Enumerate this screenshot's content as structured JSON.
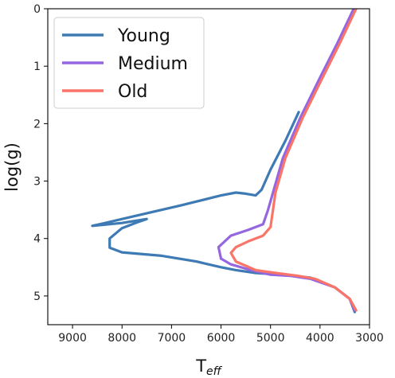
{
  "chart_data": {
    "type": "line",
    "title": "",
    "xlabel": "T",
    "xlabel_sub": "eff",
    "ylabel": "log(g)",
    "xlim": [
      9500,
      3000
    ],
    "ylim": [
      5.5,
      0
    ],
    "x_inverted": true,
    "y_inverted": true,
    "xticks": [
      9000,
      8000,
      7000,
      6000,
      5000,
      4000,
      3000
    ],
    "yticks": [
      0,
      1,
      2,
      3,
      4,
      5
    ],
    "xtick_labels": [
      "9000",
      "8000",
      "7000",
      "6000",
      "5000",
      "4000",
      "3000"
    ],
    "ytick_labels": [
      "0",
      "1",
      "2",
      "3",
      "4",
      "5"
    ],
    "grid": false,
    "legend_position": "top-left",
    "series": [
      {
        "name": "Young",
        "color": "#3e7ab3",
        "points": [
          [
            4430,
            1.8
          ],
          [
            4700,
            2.3
          ],
          [
            5000,
            2.8
          ],
          [
            5180,
            3.15
          ],
          [
            5300,
            3.25
          ],
          [
            5500,
            3.22
          ],
          [
            5700,
            3.2
          ],
          [
            6000,
            3.25
          ],
          [
            6800,
            3.42
          ],
          [
            7600,
            3.58
          ],
          [
            8400,
            3.74
          ],
          [
            8600,
            3.78
          ],
          [
            8000,
            3.73
          ],
          [
            7500,
            3.66
          ],
          [
            7700,
            3.72
          ],
          [
            8000,
            3.82
          ],
          [
            8250,
            4.0
          ],
          [
            8250,
            4.16
          ],
          [
            8000,
            4.24
          ],
          [
            7200,
            4.3
          ],
          [
            6500,
            4.4
          ],
          [
            6000,
            4.5
          ],
          [
            5700,
            4.55
          ],
          [
            5300,
            4.6
          ],
          [
            4800,
            4.63
          ],
          [
            4200,
            4.68
          ],
          [
            3700,
            4.85
          ],
          [
            3400,
            5.05
          ],
          [
            3300,
            5.28
          ]
        ]
      },
      {
        "name": "Medium",
        "color": "#9467e0",
        "points": [
          [
            3320,
            0.0
          ],
          [
            3650,
            0.6
          ],
          [
            4000,
            1.2
          ],
          [
            4400,
            1.9
          ],
          [
            4750,
            2.6
          ],
          [
            4950,
            3.2
          ],
          [
            5050,
            3.5
          ],
          [
            5150,
            3.75
          ],
          [
            5450,
            3.85
          ],
          [
            5800,
            3.95
          ],
          [
            6050,
            4.15
          ],
          [
            6000,
            4.35
          ],
          [
            5800,
            4.45
          ],
          [
            5400,
            4.55
          ],
          [
            5000,
            4.63
          ],
          [
            4600,
            4.65
          ],
          [
            4200,
            4.7
          ],
          [
            3700,
            4.85
          ],
          [
            3400,
            5.05
          ],
          [
            3300,
            5.25
          ]
        ]
      },
      {
        "name": "Old",
        "color": "#fa7468",
        "points": [
          [
            3270,
            0.0
          ],
          [
            3600,
            0.6
          ],
          [
            3950,
            1.2
          ],
          [
            4350,
            1.9
          ],
          [
            4700,
            2.6
          ],
          [
            4900,
            3.2
          ],
          [
            4950,
            3.5
          ],
          [
            5000,
            3.8
          ],
          [
            5150,
            3.95
          ],
          [
            5450,
            4.05
          ],
          [
            5700,
            4.15
          ],
          [
            5800,
            4.25
          ],
          [
            5700,
            4.4
          ],
          [
            5300,
            4.55
          ],
          [
            4900,
            4.6
          ],
          [
            4450,
            4.65
          ],
          [
            4100,
            4.7
          ],
          [
            3700,
            4.85
          ],
          [
            3400,
            5.05
          ],
          [
            3270,
            5.25
          ]
        ]
      }
    ]
  }
}
